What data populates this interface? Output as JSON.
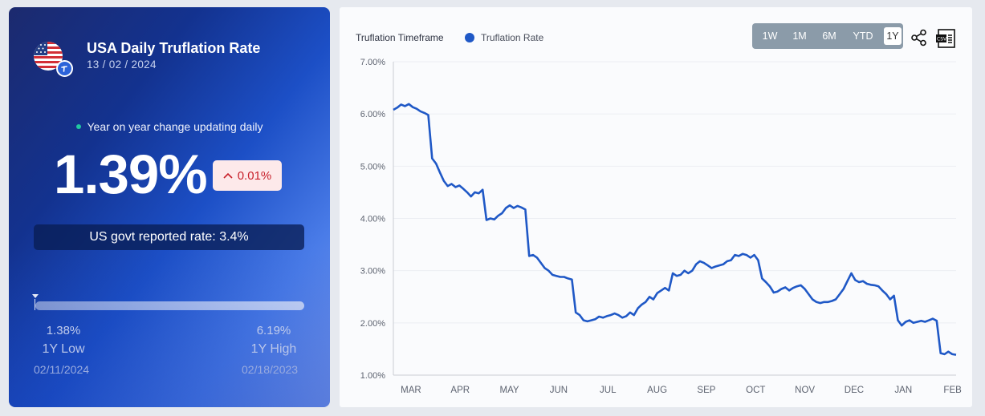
{
  "left_card": {
    "title": "USA Daily Truflation Rate",
    "date": "13 / 02 / 2024",
    "live_note": "Year on year change updating daily",
    "current_rate": "1.39%",
    "change": "0.01%",
    "change_direction": "up",
    "govt_rate": "US govt reported rate: 3.4%",
    "range": {
      "low_value": "1.38%",
      "low_label": "1Y Low",
      "low_date": "02/11/2024",
      "high_value": "6.19%",
      "high_label": "1Y High",
      "high_date": "02/18/2023",
      "current_position": 0.0
    },
    "colors": {
      "accent_dot": "#21c7a0",
      "badge_bg": "#fde9ea",
      "badge_text": "#c8202a"
    },
    "icons": {
      "flag": "usa-flag-icon",
      "badge": "truflation-logo-icon"
    }
  },
  "right_card": {
    "legend_title": "Truflation Timeframe",
    "legend_series": "Truflation Rate",
    "timeframes": [
      "1W",
      "1M",
      "6M",
      "YTD",
      "1Y"
    ],
    "active_timeframe": "1Y",
    "icons": {
      "share": "share-icon",
      "csv": "csv-download-icon"
    }
  },
  "chart_data": {
    "type": "line",
    "title": "",
    "xlabel": "",
    "ylabel": "",
    "ylim": [
      1,
      7
    ],
    "yticks": [
      "1.00%",
      "2.00%",
      "3.00%",
      "4.00%",
      "5.00%",
      "6.00%",
      "7.00%"
    ],
    "xticks": [
      "MAR",
      "APR",
      "MAY",
      "JUN",
      "JUL",
      "AUG",
      "SEP",
      "OCT",
      "NOV",
      "DEC",
      "JAN",
      "FEB"
    ],
    "xtick_index": [
      10,
      38,
      66,
      94,
      122,
      150,
      178,
      206,
      234,
      262,
      290,
      318
    ],
    "grid": true,
    "color": "#1f58c6",
    "series": [
      {
        "name": "Truflation Rate",
        "values": [
          6.08,
          6.12,
          6.18,
          6.15,
          6.19,
          6.13,
          6.1,
          6.05,
          6.02,
          5.98,
          5.15,
          5.05,
          4.88,
          4.72,
          4.62,
          4.66,
          4.6,
          4.63,
          4.57,
          4.5,
          4.42,
          4.5,
          4.48,
          4.55,
          3.97,
          4.0,
          3.98,
          4.05,
          4.1,
          4.2,
          4.25,
          4.2,
          4.24,
          4.21,
          4.17,
          3.28,
          3.3,
          3.25,
          3.15,
          3.05,
          3.0,
          2.92,
          2.9,
          2.88,
          2.88,
          2.85,
          2.83,
          2.2,
          2.15,
          2.05,
          2.03,
          2.05,
          2.07,
          2.12,
          2.1,
          2.13,
          2.15,
          2.18,
          2.15,
          2.1,
          2.13,
          2.2,
          2.15,
          2.28,
          2.35,
          2.4,
          2.5,
          2.45,
          2.57,
          2.62,
          2.67,
          2.62,
          2.95,
          2.9,
          2.92,
          3.0,
          2.95,
          3.0,
          3.12,
          3.18,
          3.15,
          3.1,
          3.05,
          3.08,
          3.1,
          3.12,
          3.18,
          3.2,
          3.3,
          3.28,
          3.32,
          3.3,
          3.25,
          3.3,
          3.2,
          2.85,
          2.78,
          2.7,
          2.58,
          2.6,
          2.65,
          2.68,
          2.62,
          2.67,
          2.7,
          2.72,
          2.65,
          2.55,
          2.45,
          2.4,
          2.38,
          2.4,
          2.4,
          2.42,
          2.45,
          2.55,
          2.65,
          2.8,
          2.95,
          2.82,
          2.78,
          2.8,
          2.75,
          2.73,
          2.72,
          2.7,
          2.62,
          2.55,
          2.45,
          2.52,
          2.05,
          1.95,
          2.02,
          2.05,
          2.0,
          2.02,
          2.04,
          2.02,
          2.05,
          2.08,
          2.04,
          1.42,
          1.4,
          1.45,
          1.4,
          1.39
        ]
      }
    ]
  }
}
